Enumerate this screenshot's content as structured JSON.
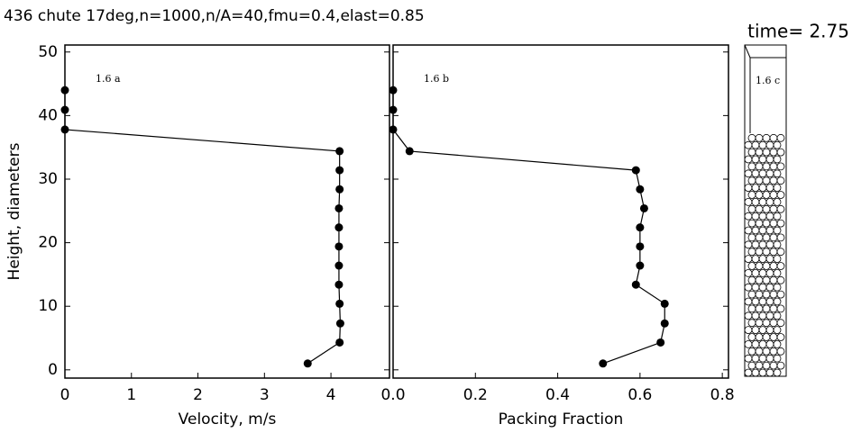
{
  "title": "436 chute 17deg,n=1000,n/A=40,fmu=0.4,elast=0.85",
  "time_label": "time= 2.75",
  "chart_data": [
    {
      "type": "line",
      "panel_label": "1.6 a",
      "xlabel": "Velocity,   m/s",
      "ylabel": "Height,  diameters",
      "x": [
        3.65,
        4.13,
        4.14,
        4.13,
        4.12,
        4.12,
        4.12,
        4.12,
        4.12,
        4.13,
        4.13,
        4.13,
        0,
        0,
        0
      ],
      "values": [
        1,
        4.3,
        7.3,
        10.4,
        13.4,
        16.4,
        19.4,
        22.4,
        25.4,
        28.4,
        31.4,
        34.4,
        37.8,
        40.9,
        44.0
      ],
      "color": "#000000",
      "xlim": [
        0,
        4.88
      ],
      "xticks": [
        0,
        1,
        2,
        3,
        4
      ],
      "ylim": [
        -1.3,
        51.1
      ],
      "yticks": [
        0,
        10,
        20,
        30,
        40,
        50
      ]
    },
    {
      "type": "line",
      "panel_label": "1.6 b",
      "xlabel": "Packing Fraction",
      "x": [
        0.51,
        0.65,
        0.66,
        0.66,
        0.59,
        0.6,
        0.6,
        0.6,
        0.61,
        0.6,
        0.59,
        0.04,
        0,
        0,
        0
      ],
      "values": [
        1,
        4.3,
        7.3,
        10.4,
        13.4,
        16.4,
        19.4,
        22.4,
        25.4,
        28.4,
        31.4,
        34.4,
        37.8,
        40.9,
        44.0
      ],
      "color": "#000000",
      "xlim": [
        0,
        0.815
      ],
      "xticks": [
        {
          "value": 0,
          "label": "0.0"
        },
        0.2,
        0.4,
        0.6,
        0.8
      ],
      "ylim": [
        -1.3,
        51.1
      ],
      "yticks": [
        0,
        10,
        20,
        30,
        40,
        50
      ]
    }
  ],
  "panel_c": {
    "label": "1.6 c"
  }
}
